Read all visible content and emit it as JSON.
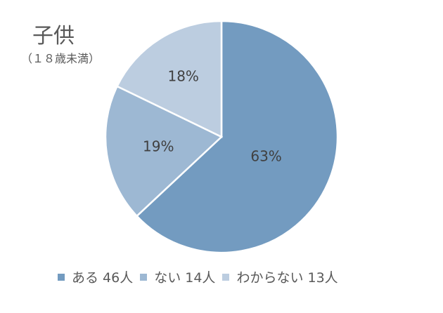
{
  "chart_data": {
    "type": "pie",
    "title": "子供",
    "subtitle": "（１８歳未満）",
    "categories": [
      "ある",
      "ない",
      "わからない"
    ],
    "values": [
      46,
      14,
      13
    ],
    "percent_labels": [
      "63%",
      "19%",
      "18%"
    ],
    "legend_labels": [
      "ある 46人",
      "ない 14人",
      "わからない 13人"
    ],
    "colors": [
      "#739BC0",
      "#9DB8D3",
      "#BCCDE0"
    ],
    "legend_position": "bottom"
  }
}
